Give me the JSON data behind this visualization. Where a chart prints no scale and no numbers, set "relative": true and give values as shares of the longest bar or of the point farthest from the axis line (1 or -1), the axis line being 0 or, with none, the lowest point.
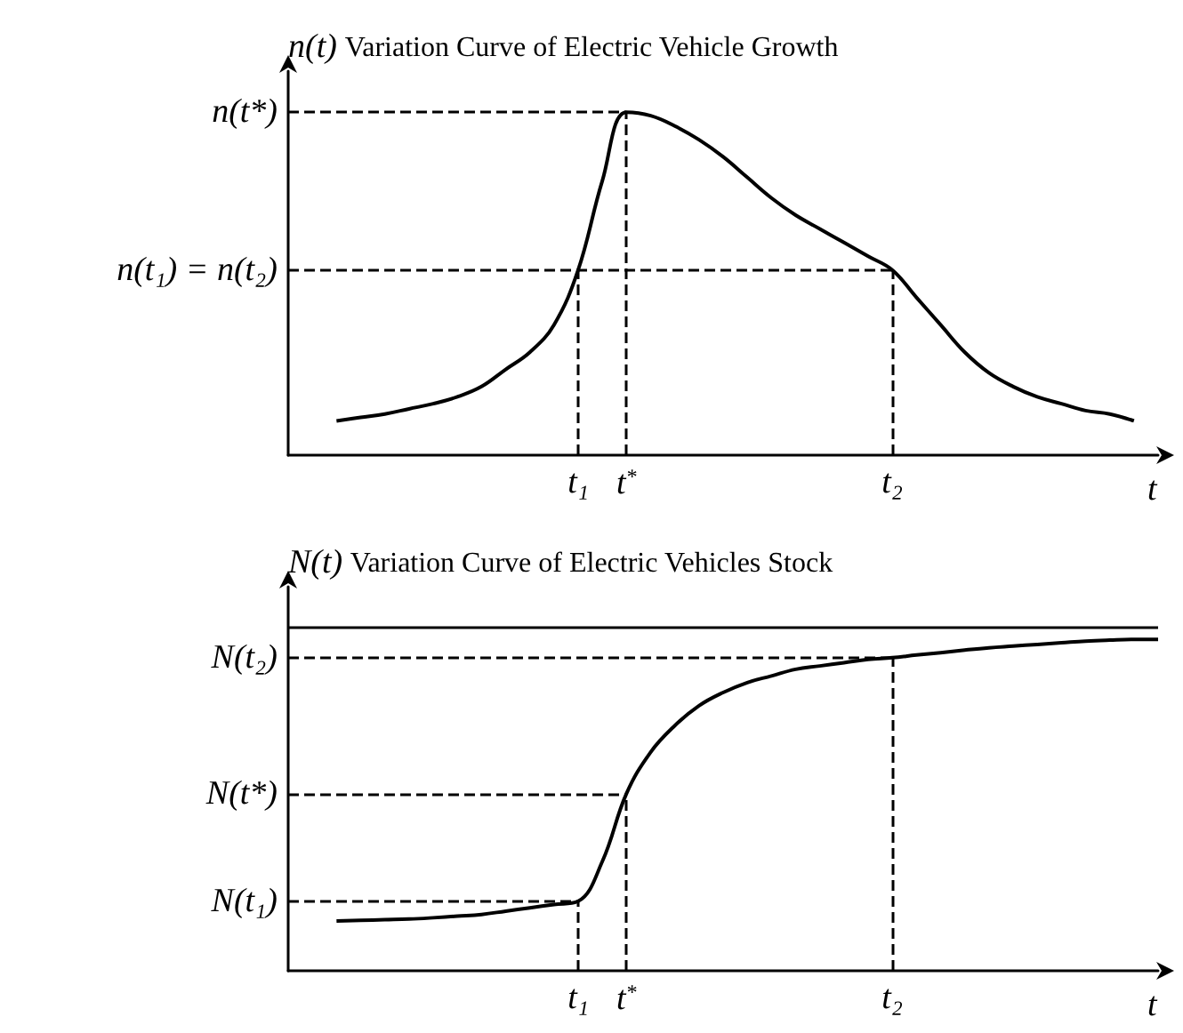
{
  "chart_data": [
    {
      "type": "line",
      "title": "Variation Curve of Electric Vehicle Growth",
      "xlabel": "t",
      "ylabel": "n(t)",
      "relative": true,
      "categories": [
        null,
        null,
        null,
        null,
        null,
        null,
        null,
        null,
        null,
        null,
        null,
        null,
        "t₁",
        null,
        "t$^{*}$",
        null,
        null,
        null,
        null,
        null,
        null,
        null,
        null,
        null,
        null,
        "t₂",
        null,
        null,
        null,
        null,
        null,
        null,
        null,
        null,
        null,
        null,
        null
      ],
      "series": [
        {
          "color": "#000000",
          "values": [
            null,
            null,
            0.1,
            0.11,
            0.12,
            0.135,
            0.15,
            0.17,
            0.2,
            0.25,
            0.3,
            0.38,
            0.54,
            0.8,
            1,
            0.99,
            0.96,
            0.92,
            0.87,
            0.81,
            0.75,
            0.7,
            0.66,
            0.62,
            0.58,
            0.54,
            0.46,
            0.38,
            0.3,
            0.24,
            0.2,
            0.17,
            0.15,
            0.13,
            0.12,
            0.1,
            null
          ]
        }
      ],
      "ref_lines": [
        {
          "axis": "y",
          "value": 1,
          "label": "n(t*)",
          "line_style": "dashed"
        },
        {
          "axis": "y",
          "value": 0.54,
          "label": "n(t₁) = n(t₂)",
          "line_style": "dashed"
        },
        {
          "axis": "x",
          "value": "t₁",
          "line_style": "dashed"
        },
        {
          "axis": "x",
          "value": "t$^{*}$",
          "line_style": "dashed"
        },
        {
          "axis": "x",
          "value": "t₂",
          "line_style": "dashed"
        }
      ]
    },
    {
      "type": "line",
      "title": "Variation Curve of Electric Vehicles Stock",
      "xlabel": "t",
      "ylabel": "N(t)",
      "relative": true,
      "categories": [
        null,
        null,
        null,
        null,
        null,
        null,
        null,
        null,
        null,
        null,
        null,
        null,
        "t₁",
        null,
        "t$^{*}$",
        null,
        null,
        null,
        null,
        null,
        null,
        null,
        null,
        null,
        null,
        "t₂",
        null,
        null,
        null,
        null,
        null,
        null,
        null,
        null,
        null,
        null,
        null
      ],
      "series": [
        {
          "color": "#000000",
          "values": [
            null,
            null,
            0.15,
            0.152,
            0.154,
            0.156,
            0.16,
            0.165,
            0.17,
            0.18,
            0.19,
            0.2,
            0.21,
            0.33,
            0.535,
            0.66,
            0.74,
            0.8,
            0.84,
            0.87,
            0.89,
            0.91,
            0.92,
            0.93,
            0.94,
            0.945,
            0.953,
            0.96,
            0.968,
            0.975,
            0.98,
            0.985,
            0.99,
            0.995,
            0.998,
            1,
            1
          ]
        }
      ],
      "ref_lines": [
        {
          "axis": "y",
          "value": 1.035,
          "line_style": "solid"
        },
        {
          "axis": "y",
          "value": 0.945,
          "label": "N(t₂)",
          "line_style": "dashed"
        },
        {
          "axis": "y",
          "value": 0.535,
          "label": "N(t*)",
          "line_style": "dashed"
        },
        {
          "axis": "y",
          "value": 0.21,
          "label": "N(t₁)",
          "line_style": "dashed"
        },
        {
          "axis": "x",
          "value": "t₁",
          "line_style": "dashed"
        },
        {
          "axis": "x",
          "value": "t$^{*}$",
          "line_style": "dashed"
        },
        {
          "axis": "x",
          "value": "t₂",
          "line_style": "dashed"
        }
      ]
    }
  ]
}
